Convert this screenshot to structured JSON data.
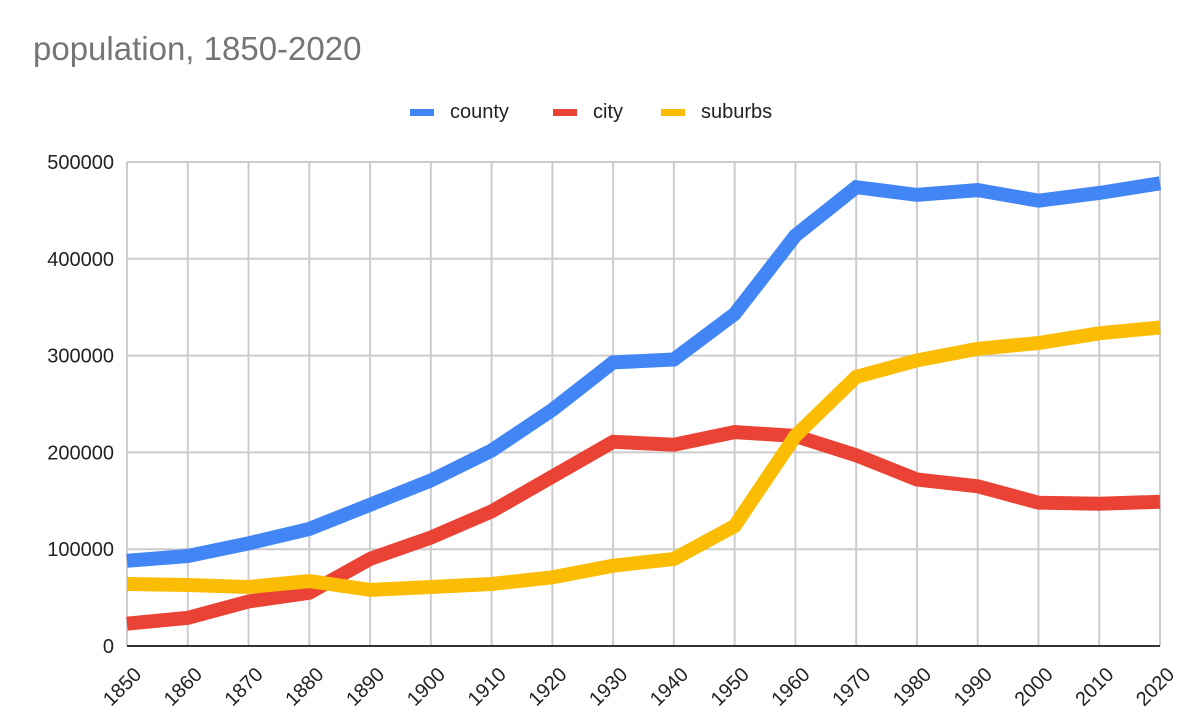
{
  "chart_data": {
    "type": "line",
    "title": "population, 1850-2020",
    "xlabel": "",
    "ylabel": "",
    "legend_position": "top-center",
    "grid": true,
    "x": [
      "1850",
      "1860",
      "1870",
      "1880",
      "1890",
      "1900",
      "1910",
      "1920",
      "1930",
      "1940",
      "1950",
      "1960",
      "1970",
      "1980",
      "1990",
      "2000",
      "2010",
      "2020"
    ],
    "ylim": [
      0,
      500000
    ],
    "yticks": [
      "0",
      "100000",
      "200000",
      "300000",
      "400000",
      "500000"
    ],
    "series": [
      {
        "name": "county",
        "color": "#4285f4",
        "values": [
          88000,
          93000,
          106000,
          121000,
          146000,
          171000,
          202000,
          244000,
          293000,
          296000,
          343000,
          424000,
          474000,
          466000,
          471000,
          460000,
          468000,
          478000
        ]
      },
      {
        "name": "city",
        "color": "#ea4335",
        "values": [
          23000,
          29000,
          46000,
          55000,
          90000,
          112000,
          139000,
          175000,
          211000,
          208000,
          221000,
          217000,
          197000,
          172000,
          165000,
          148000,
          147000,
          149000
        ]
      },
      {
        "name": "suburbs",
        "color": "#fbbc04",
        "values": [
          64000,
          63000,
          61000,
          67000,
          58000,
          61000,
          64000,
          71000,
          83000,
          90000,
          124000,
          217000,
          278000,
          295000,
          307000,
          313000,
          323000,
          329000
        ]
      }
    ]
  }
}
